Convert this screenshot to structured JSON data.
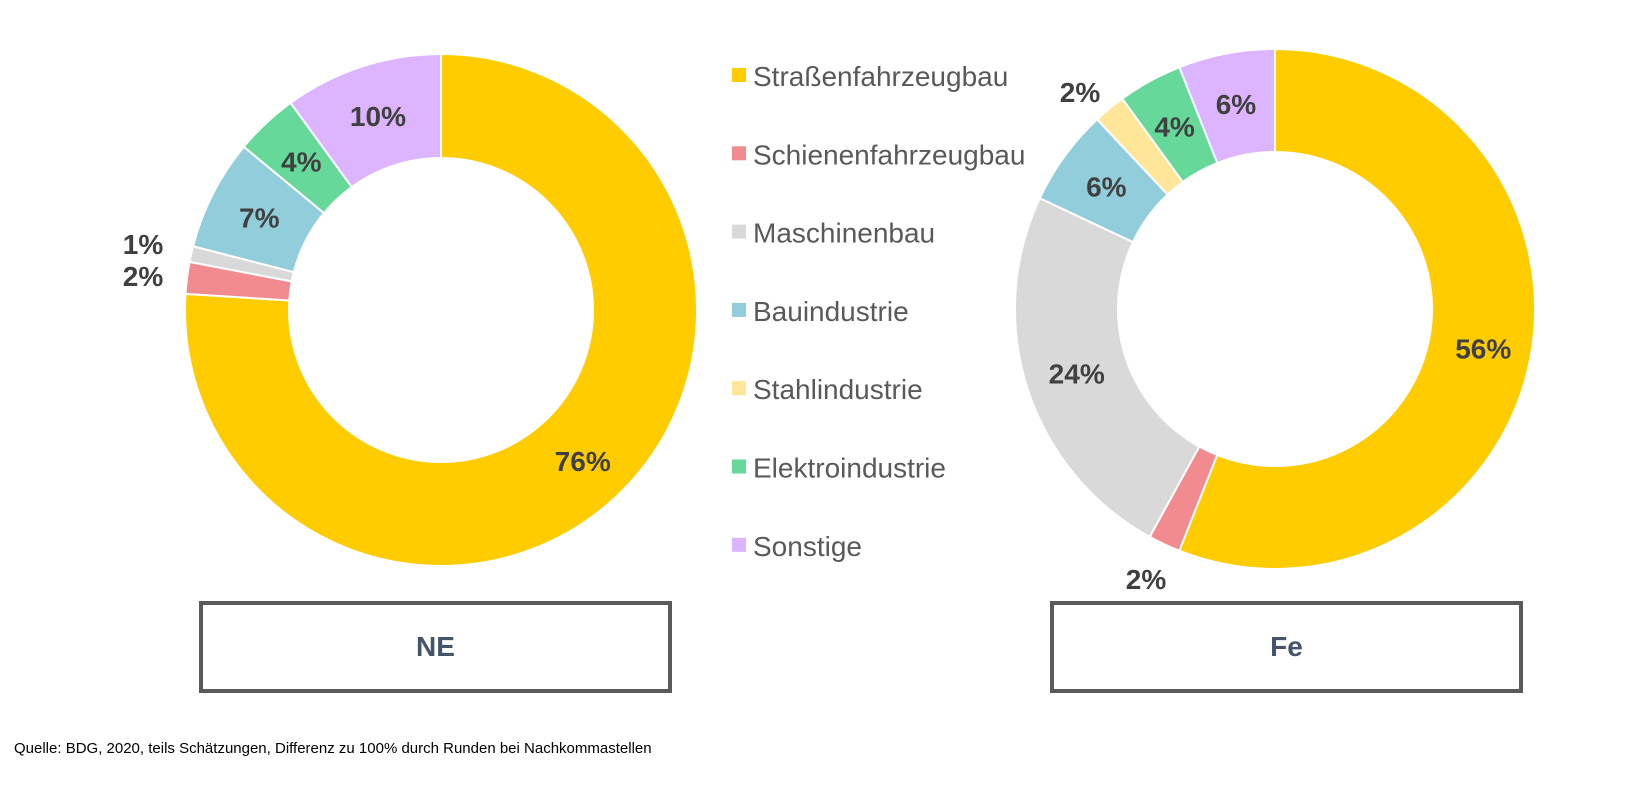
{
  "chart_data": [
    {
      "type": "donut",
      "title": "NE",
      "categories": [
        "Straßenfahrzeugbau",
        "Schienenfahrzeugbau",
        "Maschinenbau",
        "Bauindustrie",
        "Stahlindustrie",
        "Elektroindustrie",
        "Sonstige"
      ],
      "values": [
        76,
        2,
        1,
        7,
        0,
        4,
        10
      ],
      "labels": [
        "76%",
        "2%",
        "1%",
        "7%",
        "",
        "4%",
        "10%"
      ]
    },
    {
      "type": "donut",
      "title": "Fe",
      "categories": [
        "Straßenfahrzeugbau",
        "Schienenfahrzeugbau",
        "Maschinenbau",
        "Bauindustrie",
        "Stahlindustrie",
        "Elektroindustrie",
        "Sonstige"
      ],
      "values": [
        56,
        2,
        24,
        6,
        2,
        4,
        6
      ],
      "labels": [
        "56%",
        "2%",
        "24%",
        "6%",
        "2%",
        "4%",
        "6%"
      ]
    }
  ],
  "legend": {
    "items": [
      "Straßenfahrzeugbau",
      "Schienenfahrzeugbau",
      "Maschinenbau",
      "Bauindustrie",
      "Stahlindustrie",
      "Elektroindustrie",
      "Sonstige"
    ],
    "colors": [
      "#ffcc00",
      "#f28b8f",
      "#d9d9d9",
      "#92cddc",
      "#ffe699",
      "#66d99a",
      "#dcb4ff"
    ]
  },
  "footer": {
    "source": "Quelle:  BDG, 2020, teils Schätzungen, Differenz zu 100% durch Runden bei Nachkommastellen"
  }
}
